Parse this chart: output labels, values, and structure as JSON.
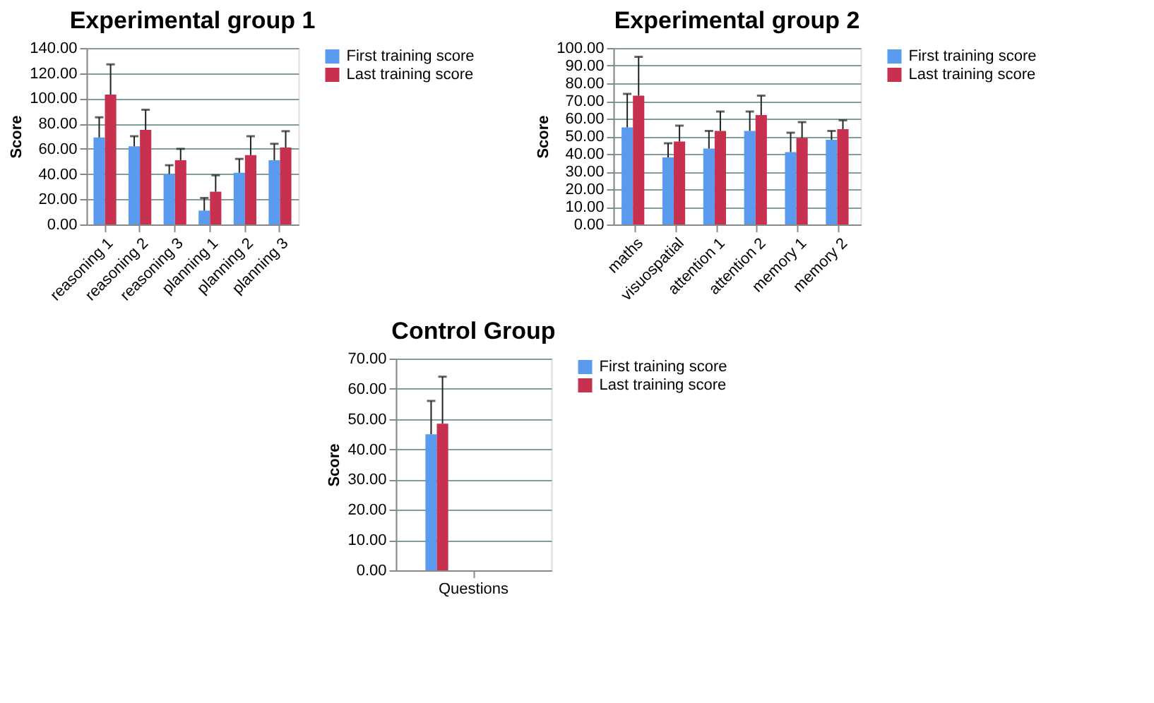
{
  "chart_data": [
    {
      "type": "bar",
      "title": "Experimental group 1",
      "ylabel": "Score",
      "categories": [
        "reasoning 1",
        "reasoning 2",
        "reasoning 3",
        "planning 1",
        "planning 2",
        "planning 3"
      ],
      "ylim": [
        0,
        140
      ],
      "yticks": [
        {
          "value": 0,
          "label": "0.00"
        },
        {
          "value": 20,
          "label": "20.00"
        },
        {
          "value": 40,
          "label": "40.00"
        },
        {
          "value": 60,
          "label": "60.00"
        },
        {
          "value": 80,
          "label": "80.00"
        },
        {
          "value": 100,
          "label": "100.00"
        },
        {
          "value": 120,
          "label": "120.00"
        },
        {
          "value": 140,
          "label": "140.00"
        }
      ],
      "grid": "y",
      "legend": "right",
      "series": [
        {
          "name": "First training score",
          "color": "#5b9bef",
          "values": [
            69,
            62,
            40,
            11,
            41,
            51
          ],
          "errors": [
            [
              69,
              85
            ],
            [
              62,
              70
            ],
            [
              40,
              47
            ],
            [
              11,
              21
            ],
            [
              41,
              52
            ],
            [
              51,
              64
            ]
          ]
        },
        {
          "name": "Last training score",
          "color": "#c8304f",
          "values": [
            103,
            75,
            51,
            26,
            55,
            61
          ],
          "errors": [
            [
              103,
              127
            ],
            [
              75,
              91
            ],
            [
              51,
              60
            ],
            [
              26,
              39
            ],
            [
              55,
              70
            ],
            [
              61,
              74
            ]
          ]
        }
      ]
    },
    {
      "type": "bar",
      "title": "Experimental group 2",
      "ylabel": "Score",
      "categories": [
        "maths",
        "visuospatial",
        "attention 1",
        "attention 2",
        "memory 1",
        "memory 2"
      ],
      "ylim": [
        0,
        100
      ],
      "yticks": [
        {
          "value": 0,
          "label": "0.00"
        },
        {
          "value": 10,
          "label": "10.00"
        },
        {
          "value": 20,
          "label": "20.00"
        },
        {
          "value": 30,
          "label": "30.00"
        },
        {
          "value": 40,
          "label": "40.00"
        },
        {
          "value": 50,
          "label": "50.00"
        },
        {
          "value": 60,
          "label": "60.00"
        },
        {
          "value": 70,
          "label": "70.00"
        },
        {
          "value": 80,
          "label": "80.00"
        },
        {
          "value": 90,
          "label": "90.00"
        },
        {
          "value": 100,
          "label": "100.00"
        }
      ],
      "grid": "y",
      "legend": "right",
      "series": [
        {
          "name": "First training score",
          "color": "#5b9bef",
          "values": [
            55,
            38,
            43,
            53,
            41,
            48
          ],
          "errors": [
            [
              55,
              74
            ],
            [
              38,
              46
            ],
            [
              43,
              53
            ],
            [
              53,
              64
            ],
            [
              41,
              52
            ],
            [
              48,
              53
            ]
          ]
        },
        {
          "name": "Last training score",
          "color": "#c8304f",
          "values": [
            73,
            47,
            53,
            62,
            49,
            54
          ],
          "errors": [
            [
              73,
              95
            ],
            [
              47,
              56
            ],
            [
              53,
              64
            ],
            [
              62,
              73
            ],
            [
              49,
              58
            ],
            [
              54,
              59
            ]
          ]
        }
      ]
    },
    {
      "type": "bar",
      "title": "Control Group",
      "ylabel": "Score",
      "categories": [
        "Questions"
      ],
      "ylim": [
        0,
        70
      ],
      "yticks": [
        {
          "value": 0,
          "label": "0.00"
        },
        {
          "value": 10,
          "label": "10.00"
        },
        {
          "value": 20,
          "label": "20.00"
        },
        {
          "value": 30,
          "label": "30.00"
        },
        {
          "value": 40,
          "label": "40.00"
        },
        {
          "value": 50,
          "label": "50.00"
        },
        {
          "value": 60,
          "label": "60.00"
        },
        {
          "value": 70,
          "label": "70.00"
        }
      ],
      "grid": "y",
      "legend": "right",
      "series": [
        {
          "name": "First training score",
          "color": "#5b9bef",
          "values": [
            45
          ],
          "errors": [
            [
              45,
              56
            ]
          ]
        },
        {
          "name": "Last training score",
          "color": "#c8304f",
          "values": [
            48.5
          ],
          "errors": [
            [
              48.5,
              64
            ]
          ]
        }
      ]
    }
  ]
}
